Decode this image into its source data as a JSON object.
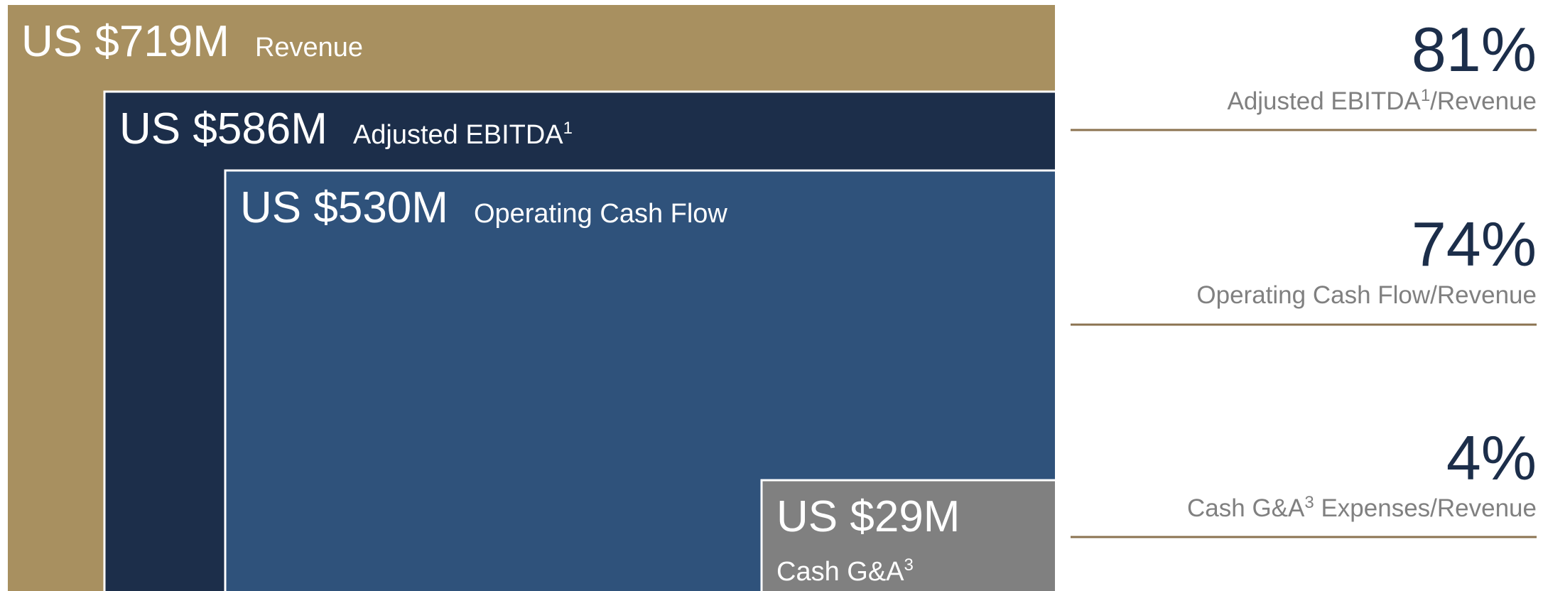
{
  "boxes": [
    {
      "amount": "US $719M",
      "label": "Revenue"
    },
    {
      "amount": "US $586M",
      "label": "Adjusted EBITDA",
      "note": "1"
    },
    {
      "amount": "US $530M",
      "label": "Operating Cash Flow"
    },
    {
      "amount": "US $29M",
      "label": "Cash G&A",
      "note": "3"
    }
  ],
  "ratios": [
    {
      "percent": "81%",
      "label": "Adjusted EBITDA",
      "note": "1",
      "suffix": "/Revenue"
    },
    {
      "percent": "74%",
      "label": "Operating Cash Flow/Revenue"
    },
    {
      "percent": "4%",
      "label": "Cash G&A",
      "note": "3",
      "suffix": " Expenses/Revenue"
    }
  ]
}
